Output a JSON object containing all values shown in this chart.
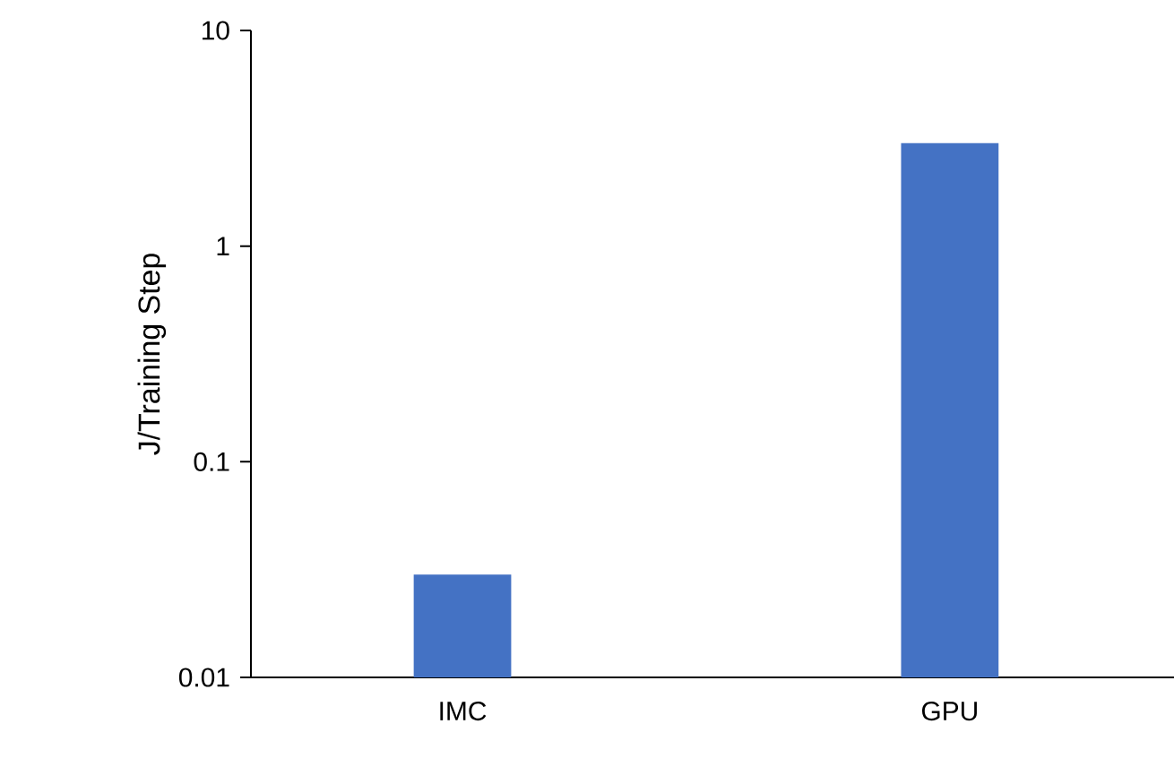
{
  "chart_data": {
    "type": "bar",
    "ylabel": "J/Training Step",
    "categories": [
      "IMC",
      "GPU"
    ],
    "values": [
      0.03,
      3
    ],
    "color": "#4472c4",
    "log": "y",
    "ylim": [
      0.01,
      10
    ],
    "yticks": [
      0.01,
      0.1,
      1,
      10
    ]
  }
}
